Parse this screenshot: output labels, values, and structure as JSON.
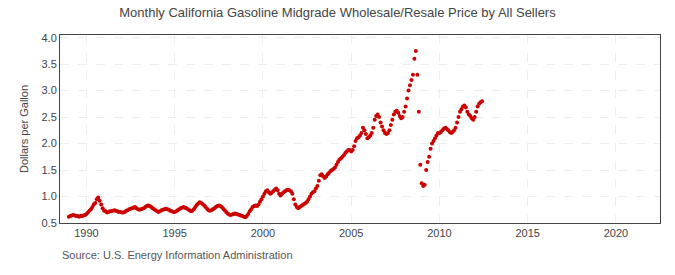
{
  "chart_data": {
    "type": "scatter",
    "title": "Monthly California Gasoline Midgrade Wholesale/Resale Price by All Sellers",
    "ylabel": "Dollars per Gallon",
    "annotations": [
      "Source: U.S. Energy Information Administration"
    ],
    "color": "#cc0000",
    "grid": true,
    "xlim": [
      1988.5,
      2022.5
    ],
    "ylim": [
      0.5,
      4.05
    ],
    "xticks": [
      1990,
      1995,
      2000,
      2005,
      2010,
      2015,
      2020
    ],
    "yticks": [
      0.5,
      {
        "value": 1.0,
        "label": "1.0"
      },
      1.5,
      {
        "value": 2.0,
        "label": "2.0"
      },
      2.5,
      {
        "value": 3.0,
        "label": "3.0"
      },
      3.5,
      {
        "value": 4.0,
        "label": "4.0"
      }
    ],
    "x": [
      1989.0,
      1989.083,
      1989.167,
      1989.25,
      1989.333,
      1989.417,
      1989.5,
      1989.583,
      1989.667,
      1989.75,
      1989.833,
      1989.917,
      1990.0,
      1990.083,
      1990.167,
      1990.25,
      1990.333,
      1990.417,
      1990.5,
      1990.583,
      1990.667,
      1990.75,
      1990.833,
      1990.917,
      1991.0,
      1991.083,
      1991.167,
      1991.25,
      1991.333,
      1991.417,
      1991.5,
      1991.583,
      1991.667,
      1991.75,
      1991.833,
      1991.917,
      1992.0,
      1992.083,
      1992.167,
      1992.25,
      1992.333,
      1992.417,
      1992.5,
      1992.583,
      1992.667,
      1992.75,
      1992.833,
      1992.917,
      1993.0,
      1993.083,
      1993.167,
      1993.25,
      1993.333,
      1993.417,
      1993.5,
      1993.583,
      1993.667,
      1993.75,
      1993.833,
      1993.917,
      1994.0,
      1994.083,
      1994.167,
      1994.25,
      1994.333,
      1994.417,
      1994.5,
      1994.583,
      1994.667,
      1994.75,
      1994.833,
      1994.917,
      1995.0,
      1995.083,
      1995.167,
      1995.25,
      1995.333,
      1995.417,
      1995.5,
      1995.583,
      1995.667,
      1995.75,
      1995.833,
      1995.917,
      1996.0,
      1996.083,
      1996.167,
      1996.25,
      1996.333,
      1996.417,
      1996.5,
      1996.583,
      1996.667,
      1996.75,
      1996.833,
      1996.917,
      1997.0,
      1997.083,
      1997.167,
      1997.25,
      1997.333,
      1997.417,
      1997.5,
      1997.583,
      1997.667,
      1997.75,
      1997.833,
      1997.917,
      1998.0,
      1998.083,
      1998.167,
      1998.25,
      1998.333,
      1998.417,
      1998.5,
      1998.583,
      1998.667,
      1998.75,
      1998.833,
      1998.917,
      1999.0,
      1999.083,
      1999.167,
      1999.25,
      1999.333,
      1999.417,
      1999.5,
      1999.583,
      1999.667,
      1999.75,
      1999.833,
      1999.917,
      2000.0,
      2000.083,
      2000.167,
      2000.25,
      2000.333,
      2000.417,
      2000.5,
      2000.583,
      2000.667,
      2000.75,
      2000.833,
      2000.917,
      2001.0,
      2001.083,
      2001.167,
      2001.25,
      2001.333,
      2001.417,
      2001.5,
      2001.583,
      2001.667,
      2001.75,
      2001.833,
      2001.917,
      2002.0,
      2002.083,
      2002.167,
      2002.25,
      2002.333,
      2002.417,
      2002.5,
      2002.583,
      2002.667,
      2002.75,
      2002.833,
      2002.917,
      2003.0,
      2003.083,
      2003.167,
      2003.25,
      2003.333,
      2003.417,
      2003.5,
      2003.583,
      2003.667,
      2003.75,
      2003.833,
      2003.917,
      2004.0,
      2004.083,
      2004.167,
      2004.25,
      2004.333,
      2004.417,
      2004.5,
      2004.583,
      2004.667,
      2004.75,
      2004.833,
      2004.917,
      2005.0,
      2005.083,
      2005.167,
      2005.25,
      2005.333,
      2005.417,
      2005.5,
      2005.583,
      2005.667,
      2005.75,
      2005.833,
      2005.917,
      2006.0,
      2006.083,
      2006.167,
      2006.25,
      2006.333,
      2006.417,
      2006.5,
      2006.583,
      2006.667,
      2006.75,
      2006.833,
      2006.917,
      2007.0,
      2007.083,
      2007.167,
      2007.25,
      2007.333,
      2007.417,
      2007.5,
      2007.583,
      2007.667,
      2007.75,
      2007.833,
      2007.917,
      2008.0,
      2008.083,
      2008.167,
      2008.25,
      2008.333,
      2008.417,
      2008.5,
      2008.583,
      2008.667,
      2008.75,
      2008.833,
      2008.917,
      2009.0,
      2009.083,
      2009.167,
      2009.25,
      2009.333,
      2009.417,
      2009.5,
      2009.583,
      2009.667,
      2009.75,
      2009.833,
      2009.917,
      2010.0,
      2010.083,
      2010.167,
      2010.25,
      2010.333,
      2010.417,
      2010.5,
      2010.583,
      2010.667,
      2010.75,
      2010.833,
      2010.917,
      2011.0,
      2011.083,
      2011.167,
      2011.25,
      2011.333,
      2011.417,
      2011.5,
      2011.583,
      2011.667,
      2011.75,
      2011.833,
      2011.917,
      2012.0,
      2012.083,
      2012.167,
      2012.25,
      2012.333,
      2012.417
    ],
    "values": [
      0.62,
      0.63,
      0.64,
      0.65,
      0.64,
      0.63,
      0.63,
      0.62,
      0.63,
      0.63,
      0.64,
      0.65,
      0.67,
      0.7,
      0.73,
      0.76,
      0.8,
      0.85,
      0.88,
      0.95,
      0.98,
      0.92,
      0.85,
      0.78,
      0.73,
      0.72,
      0.7,
      0.71,
      0.72,
      0.72,
      0.73,
      0.74,
      0.73,
      0.72,
      0.71,
      0.71,
      0.7,
      0.7,
      0.71,
      0.73,
      0.74,
      0.76,
      0.77,
      0.78,
      0.79,
      0.8,
      0.78,
      0.76,
      0.75,
      0.76,
      0.77,
      0.78,
      0.8,
      0.82,
      0.83,
      0.82,
      0.8,
      0.78,
      0.76,
      0.74,
      0.72,
      0.71,
      0.72,
      0.74,
      0.75,
      0.76,
      0.77,
      0.76,
      0.75,
      0.73,
      0.72,
      0.71,
      0.71,
      0.72,
      0.74,
      0.76,
      0.78,
      0.79,
      0.8,
      0.79,
      0.78,
      0.76,
      0.74,
      0.72,
      0.73,
      0.76,
      0.8,
      0.84,
      0.87,
      0.89,
      0.88,
      0.86,
      0.83,
      0.8,
      0.77,
      0.74,
      0.73,
      0.74,
      0.76,
      0.78,
      0.8,
      0.82,
      0.83,
      0.82,
      0.8,
      0.77,
      0.74,
      0.71,
      0.68,
      0.66,
      0.65,
      0.66,
      0.67,
      0.68,
      0.67,
      0.66,
      0.65,
      0.64,
      0.63,
      0.62,
      0.61,
      0.63,
      0.67,
      0.72,
      0.76,
      0.8,
      0.82,
      0.83,
      0.82,
      0.85,
      0.9,
      0.95,
      1.0,
      1.05,
      1.1,
      1.12,
      1.08,
      1.05,
      1.07,
      1.1,
      1.13,
      1.15,
      1.12,
      1.05,
      1.02,
      1.05,
      1.08,
      1.1,
      1.12,
      1.13,
      1.12,
      1.1,
      1.05,
      0.95,
      0.85,
      0.8,
      0.78,
      0.8,
      0.82,
      0.84,
      0.86,
      0.88,
      0.9,
      0.95,
      1.0,
      1.05,
      1.08,
      1.1,
      1.15,
      1.2,
      1.3,
      1.4,
      1.42,
      1.38,
      1.35,
      1.38,
      1.42,
      1.45,
      1.48,
      1.5,
      1.52,
      1.55,
      1.6,
      1.65,
      1.7,
      1.72,
      1.75,
      1.78,
      1.82,
      1.85,
      1.88,
      1.88,
      1.85,
      1.88,
      1.95,
      2.05,
      2.1,
      2.12,
      2.15,
      2.2,
      2.3,
      2.25,
      2.18,
      2.1,
      2.12,
      2.15,
      2.2,
      2.3,
      2.45,
      2.52,
      2.55,
      2.5,
      2.4,
      2.32,
      2.25,
      2.2,
      2.18,
      2.2,
      2.25,
      2.35,
      2.45,
      2.55,
      2.6,
      2.62,
      2.58,
      2.52,
      2.48,
      2.5,
      2.6,
      2.7,
      2.85,
      3.0,
      3.1,
      3.2,
      3.3,
      3.6,
      3.75,
      3.3,
      2.6,
      1.6,
      1.25,
      1.2,
      1.22,
      1.5,
      1.65,
      1.75,
      1.9,
      2.0,
      2.05,
      2.1,
      2.15,
      2.2,
      2.2,
      2.22,
      2.25,
      2.28,
      2.3,
      2.28,
      2.25,
      2.22,
      2.2,
      2.22,
      2.25,
      2.3,
      2.4,
      2.5,
      2.6,
      2.65,
      2.7,
      2.72,
      2.68,
      2.6,
      2.55,
      2.52,
      2.48,
      2.45,
      2.5,
      2.6,
      2.7,
      2.75,
      2.78,
      2.8
    ]
  }
}
